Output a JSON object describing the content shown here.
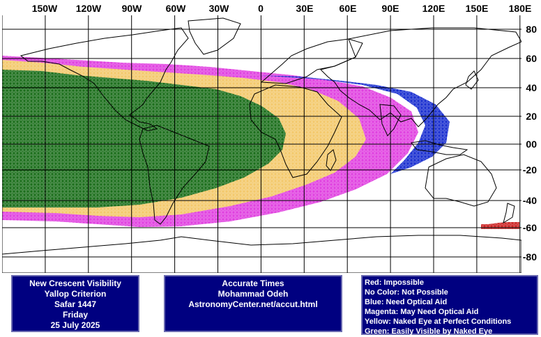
{
  "map": {
    "lon_labels": [
      "150W",
      "120W",
      "90W",
      "60W",
      "30W",
      "0",
      "30E",
      "60E",
      "90E",
      "120E",
      "150E",
      "180E"
    ],
    "lat_labels": [
      "80",
      "60",
      "40",
      "20",
      "00",
      "-20",
      "-40",
      "-60",
      "-80"
    ],
    "colors": {
      "red": "#cc2222",
      "blue": "#1a2fd0",
      "magenta": "#e040e0",
      "yellow": "#f3c86a",
      "green": "#1a6e1a",
      "coast": "#000000",
      "grid": "#000000"
    }
  },
  "info_left": {
    "line1": "New Crescent Visibility",
    "line2": "Yallop Criterion",
    "line3": "Safar 1447",
    "line4": "Friday",
    "line5": "25 July 2025"
  },
  "info_mid": {
    "line1": "Accurate Times",
    "line2": "Mohammad Odeh",
    "line3": "AstronomyCenter.net/accut.html"
  },
  "legend": {
    "red": "Red: Impossible",
    "none": "No Color: Not Possible",
    "blue": "Blue: Need Optical Aid",
    "magenta": "Magenta: May Need Optical Aid",
    "yellow": "Yellow: Naked Eye at Perfect Conditions",
    "green": "Green: Easily Visible by Naked Eye"
  }
}
